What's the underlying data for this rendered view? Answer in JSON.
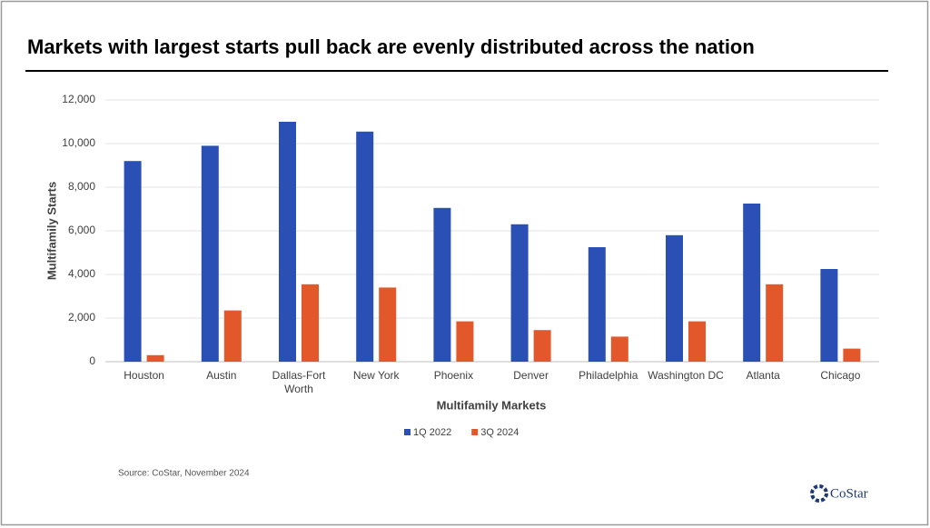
{
  "chart_data": {
    "type": "bar",
    "title": "Markets with largest starts pull back are evenly distributed across the nation",
    "x_label": "Multifamily Markets",
    "y_label": "Multifamily Starts",
    "categories": [
      "Houston",
      "Austin",
      "Dallas-Fort Worth",
      "New York",
      "Phoenix",
      "Denver",
      "Philadelphia",
      "Washington DC",
      "Atlanta",
      "Chicago"
    ],
    "series": [
      {
        "name": "1Q 2022",
        "color": "#2a4fb5",
        "values": [
          9200,
          9900,
          11000,
          10550,
          7050,
          6300,
          5250,
          5800,
          7250,
          4250
        ]
      },
      {
        "name": "3Q 2024",
        "color": "#e3582b",
        "values": [
          300,
          2350,
          3550,
          3400,
          1850,
          1450,
          1150,
          1850,
          3550,
          600
        ]
      }
    ],
    "ylim": [
      0,
      12000
    ],
    "yticks": [
      0,
      {
        "value": 2000,
        "label": "2,000"
      },
      {
        "value": 4000,
        "label": "4,000"
      },
      {
        "value": 6000,
        "label": "6,000"
      },
      {
        "value": 8000,
        "label": "8,000"
      },
      {
        "value": 10000,
        "label": "10,000"
      },
      {
        "value": 12000,
        "label": "12,000"
      }
    ],
    "grid": true,
    "legend": "bottom",
    "source": "Source: CoStar, November 2024",
    "logo": "CoStar"
  }
}
